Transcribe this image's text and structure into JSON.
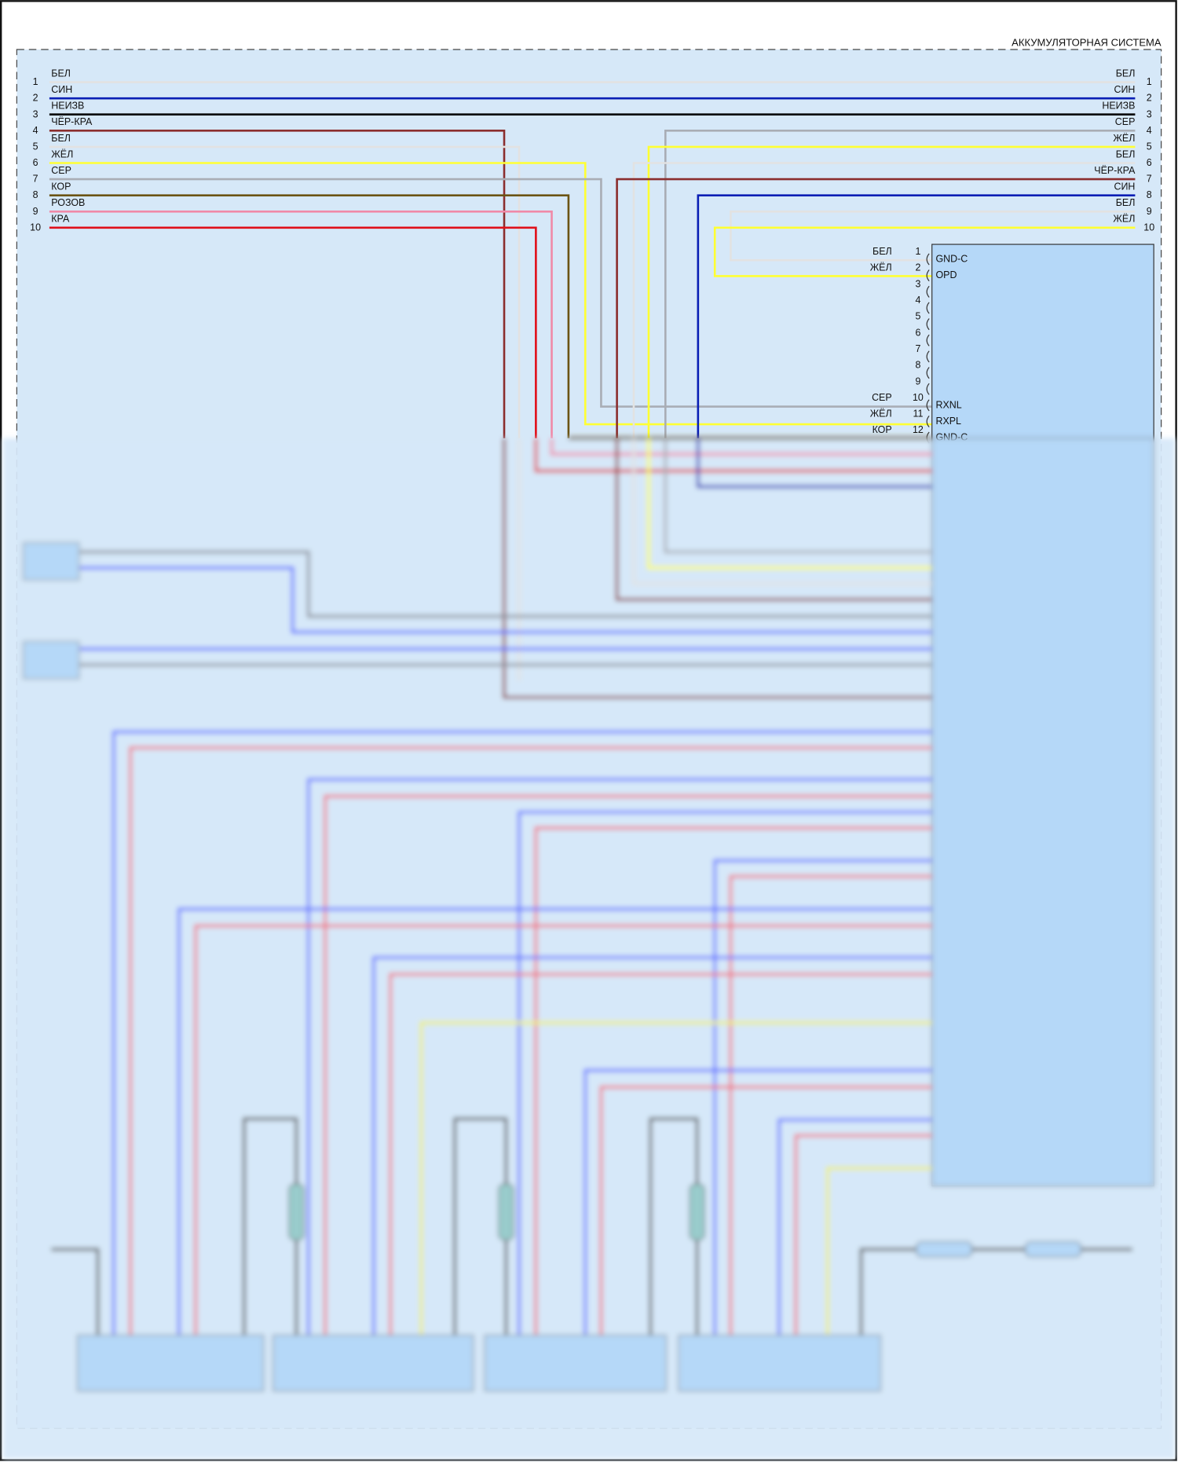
{
  "system_title": "АККУМУЛЯТОРНАЯ СИСТЕМА",
  "colors": {
    "background": "#d6e8f8",
    "connector_fill": "#b5d8f8",
    "white_wire": "#e2e2e2",
    "blue_wire": "#0a1fb5",
    "black_wire": "#000000",
    "black_red_wire": "#8b2e2e",
    "yellow_wire": "#ffff33",
    "gray_wire": "#a9adb5",
    "brown_wire": "#6b5414",
    "pink_wire": "#f08aa8",
    "red_wire": "#e0101a"
  },
  "left_connector": [
    {
      "num": "1",
      "label": "БЕЛ",
      "color": "#e2e2e2"
    },
    {
      "num": "2",
      "label": "СИН",
      "color": "#0a1fb5"
    },
    {
      "num": "3",
      "label": "НЕИЗВ",
      "color": "#000000"
    },
    {
      "num": "4",
      "label": "ЧЁР-КРА",
      "color": "#8b2e2e"
    },
    {
      "num": "5",
      "label": "БЕЛ",
      "color": "#e2e2e2"
    },
    {
      "num": "6",
      "label": "ЖЁЛ",
      "color": "#ffff33"
    },
    {
      "num": "7",
      "label": "СЕР",
      "color": "#a9adb5"
    },
    {
      "num": "8",
      "label": "КОР",
      "color": "#6b5414"
    },
    {
      "num": "9",
      "label": "РОЗОВ",
      "color": "#f08aa8"
    },
    {
      "num": "10",
      "label": "КРА",
      "color": "#e0101a"
    }
  ],
  "right_connector": [
    {
      "num": "1",
      "label": "БЕЛ",
      "color": "#e2e2e2"
    },
    {
      "num": "2",
      "label": "СИН",
      "color": "#0a1fb5"
    },
    {
      "num": "3",
      "label": "НЕИЗВ",
      "color": "#000000"
    },
    {
      "num": "4",
      "label": "СЕР",
      "color": "#a9adb5"
    },
    {
      "num": "5",
      "label": "ЖЁЛ",
      "color": "#ffff33"
    },
    {
      "num": "6",
      "label": "БЕЛ",
      "color": "#e2e2e2"
    },
    {
      "num": "7",
      "label": "ЧЁР-КРА",
      "color": "#8b2e2e"
    },
    {
      "num": "8",
      "label": "СИН",
      "color": "#0a1fb5"
    },
    {
      "num": "9",
      "label": "БЕЛ",
      "color": "#e2e2e2"
    },
    {
      "num": "10",
      "label": "ЖЁЛ",
      "color": "#ffff33"
    }
  ],
  "module_connector": [
    {
      "num": "1",
      "wire": "БЕЛ",
      "signal": "GND-C"
    },
    {
      "num": "2",
      "wire": "ЖЁЛ",
      "signal": "OPD"
    },
    {
      "num": "3",
      "wire": "",
      "signal": ""
    },
    {
      "num": "4",
      "wire": "",
      "signal": ""
    },
    {
      "num": "5",
      "wire": "",
      "signal": ""
    },
    {
      "num": "6",
      "wire": "",
      "signal": ""
    },
    {
      "num": "7",
      "wire": "",
      "signal": ""
    },
    {
      "num": "8",
      "wire": "",
      "signal": ""
    },
    {
      "num": "9",
      "wire": "",
      "signal": ""
    },
    {
      "num": "10",
      "wire": "СЕР",
      "signal": "RXNL"
    },
    {
      "num": "11",
      "wire": "ЖЁЛ",
      "signal": "RXPL"
    },
    {
      "num": "12",
      "wire": "КОР",
      "signal": "GND-C"
    }
  ]
}
